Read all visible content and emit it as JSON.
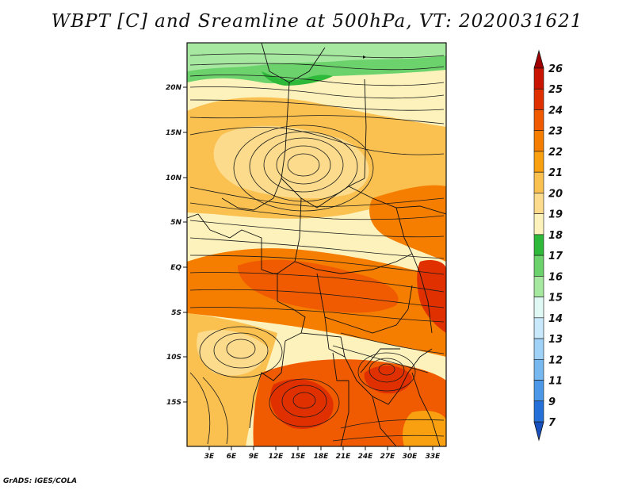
{
  "title": "WBPT [C] and Sreamline at 500hPa, VT: 2020031621",
  "footer": "GrADS: IGES/COLA",
  "map": {
    "lat_labels": [
      "20N",
      "15N",
      "10N",
      "5N",
      "EQ",
      "5S",
      "10S",
      "15S"
    ],
    "lon_labels": [
      "3E",
      "6E",
      "9E",
      "12E",
      "15E",
      "18E",
      "21E",
      "24E",
      "27E",
      "30E",
      "33E"
    ]
  },
  "colorbar": {
    "levels": [
      "26",
      "25",
      "24",
      "23",
      "22",
      "21",
      "20",
      "19",
      "18",
      "17",
      "16",
      "15",
      "14",
      "13",
      "12",
      "11",
      "9",
      "7"
    ],
    "colors": [
      "#a00000",
      "#c81400",
      "#e03000",
      "#f05a00",
      "#f57d00",
      "#f8a010",
      "#fac050",
      "#fcdc8c",
      "#fdf2bc",
      "#2fb93a",
      "#6cd36c",
      "#a6e8a0",
      "#e0f8f4",
      "#c8e8fb",
      "#a0d2f7",
      "#78b8f0",
      "#4c98e8",
      "#2570d8",
      "#1850c0"
    ]
  }
}
